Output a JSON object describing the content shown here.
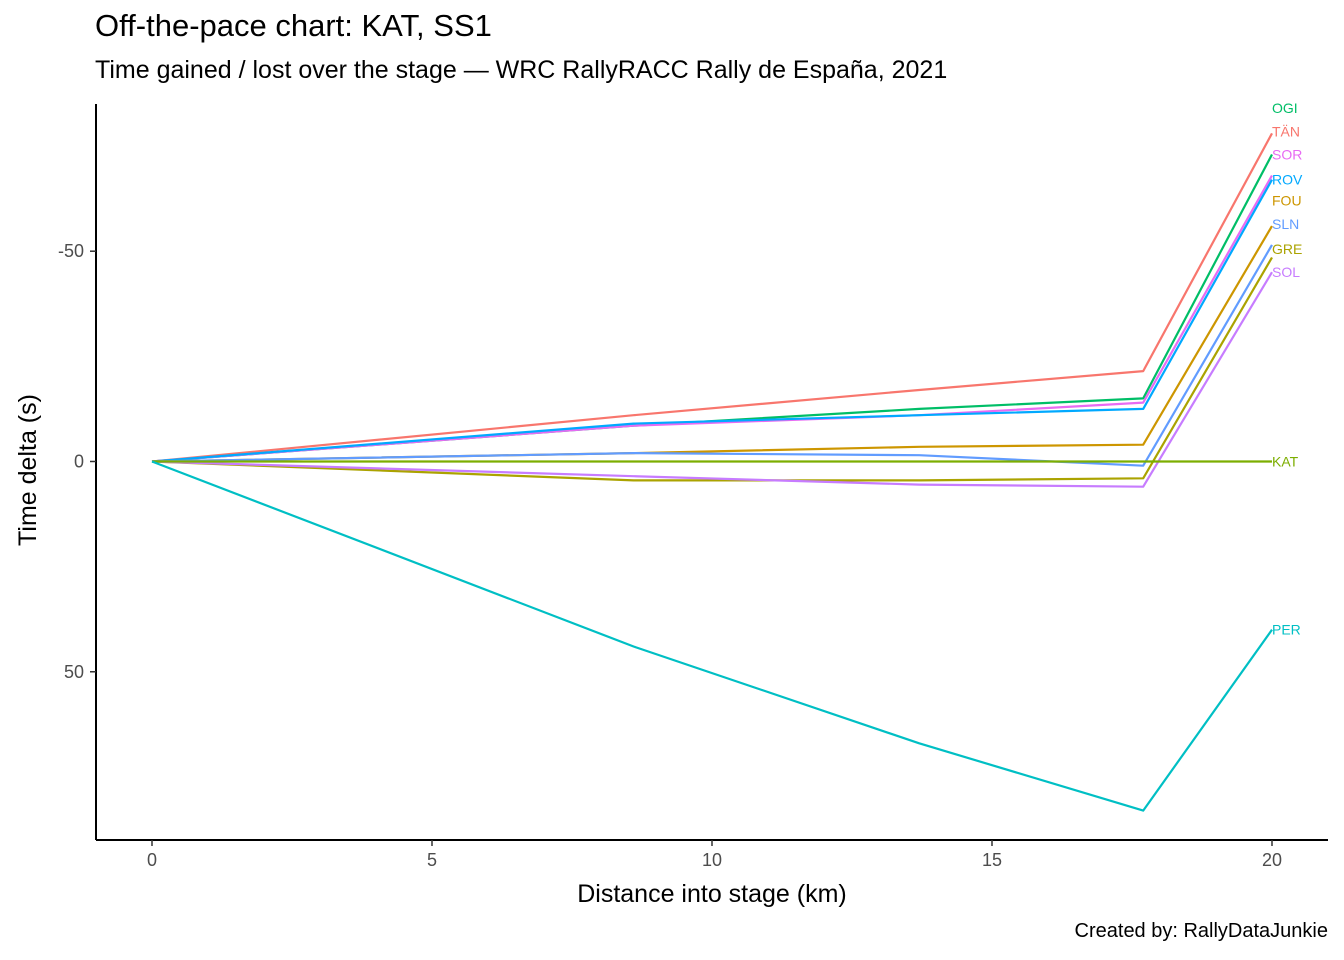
{
  "chart_data": {
    "type": "line",
    "title": "Off-the-pace chart: KAT, SS1",
    "subtitle": "Time gained / lost over the stage — WRC RallyRACC Rally de España, 2021",
    "caption": "Created by: RallyDataJunkie",
    "xlabel": "Distance into stage (km)",
    "ylabel": "Time delta (s)",
    "xlim": [
      -1,
      21
    ],
    "ylim": [
      -85,
      90
    ],
    "y_reversed": true,
    "x_ticks": [
      0,
      5,
      10,
      15,
      20
    ],
    "y_ticks": [
      -50,
      0,
      50
    ],
    "x_tick_labels": [
      "0",
      "5",
      "10",
      "15",
      "20"
    ],
    "y_tick_labels": [
      "-50",
      "0",
      "50"
    ],
    "grid": false,
    "legend": "none (direct end labels)",
    "series": [
      {
        "name": "OGI",
        "color": "#00BE67",
        "label_y": -84,
        "x": [
          0,
          8.6,
          13.7,
          17.7,
          20
        ],
        "y": [
          0,
          -8.5,
          -12.5,
          -15,
          -73
        ]
      },
      {
        "name": "TÄN",
        "color": "#F8766D",
        "label_y": -78.5,
        "x": [
          0,
          8.6,
          13.7,
          17.7,
          20
        ],
        "y": [
          0,
          -11,
          -17,
          -21.5,
          -78
        ]
      },
      {
        "name": "SOR",
        "color": "#E76BF3",
        "label_y": -73,
        "x": [
          0,
          8.6,
          13.7,
          17.7,
          20
        ],
        "y": [
          0,
          -8.5,
          -11,
          -14,
          -68
        ]
      },
      {
        "name": "ROV",
        "color": "#00A9FF",
        "label_y": -67,
        "x": [
          0,
          8.6,
          13.7,
          17.7,
          20
        ],
        "y": [
          0,
          -9,
          -11,
          -12.5,
          -67
        ]
      },
      {
        "name": "FOU",
        "color": "#CD9600",
        "label_y": -62,
        "x": [
          0,
          8.6,
          13.7,
          17.7,
          20
        ],
        "y": [
          0,
          -2,
          -3.5,
          -4,
          -56
        ]
      },
      {
        "name": "SLN",
        "color": "#619CFF",
        "label_y": -56.5,
        "x": [
          0,
          8.6,
          13.7,
          17.7,
          20
        ],
        "y": [
          0,
          -2,
          -1.5,
          1,
          -51.5
        ]
      },
      {
        "name": "GRE",
        "color": "#ABA300",
        "label_y": -50.5,
        "x": [
          0,
          8.6,
          13.7,
          17.7,
          20
        ],
        "y": [
          0,
          4.5,
          4.5,
          4,
          -48.5
        ]
      },
      {
        "name": "SOL",
        "color": "#C77CFF",
        "label_y": -45,
        "x": [
          0,
          8.6,
          13.7,
          17.7,
          20
        ],
        "y": [
          0,
          3.5,
          5.5,
          6,
          -45
        ]
      },
      {
        "name": "KAT",
        "color": "#7CAE00",
        "label_y": 0,
        "x": [
          0,
          8.6,
          13.7,
          17.7,
          20
        ],
        "y": [
          0,
          0,
          0,
          0,
          0
        ]
      },
      {
        "name": "PER",
        "color": "#00BFC4",
        "label_y": 40,
        "x": [
          0,
          8.6,
          13.7,
          17.7,
          20
        ],
        "y": [
          0,
          44,
          67,
          83,
          40
        ]
      }
    ]
  }
}
